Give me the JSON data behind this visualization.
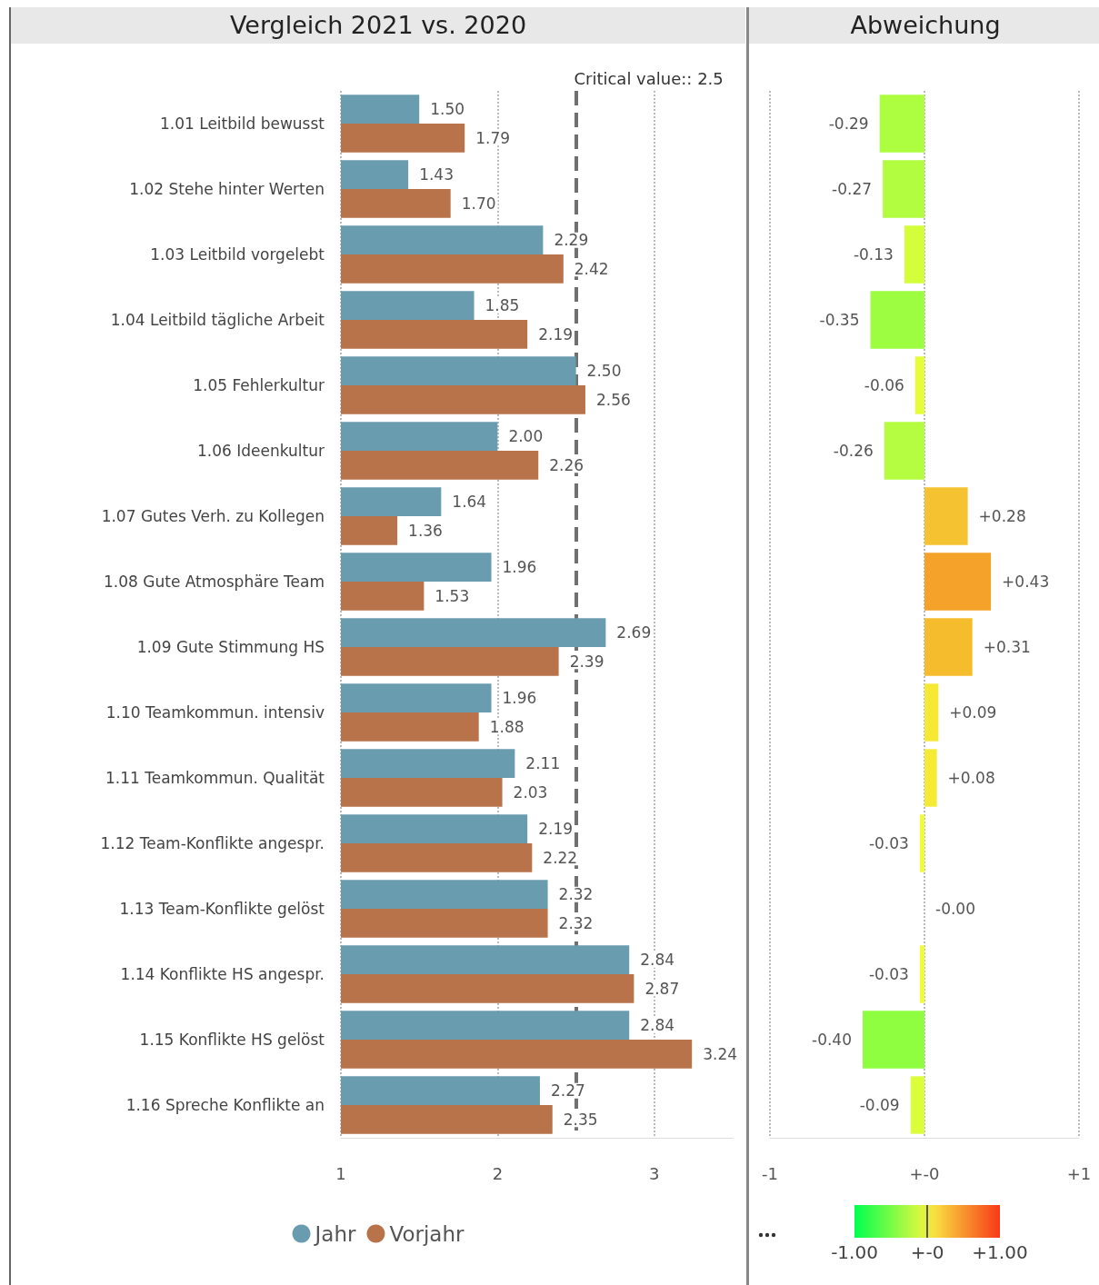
{
  "chart_data": [
    {
      "type": "bar",
      "orientation": "horizontal",
      "title": "Vergleich 2021 vs. 2020",
      "categories": [
        "1.01 Leitbild bewusst",
        "1.02 Stehe hinter Werten",
        "1.03 Leitbild vorgelebt",
        "1.04 Leitbild tägliche Arbeit",
        "1.05 Fehlerkultur",
        "1.06 Ideenkultur",
        "1.07 Gutes Verh. zu Kollegen",
        "1.08 Gute Atmosphäre Team",
        "1.09 Gute Stimmung HS",
        "1.10 Teamkommun. intensiv",
        "1.11 Teamkommun. Qualität",
        "1.12 Team-Konflikte angespr.",
        "1.13 Team-Konflikte gelöst",
        "1.14 Konflikte HS angespr.",
        "1.15 Konflikte HS gelöst",
        "1.16 Spreche Konflikte an"
      ],
      "series": [
        {
          "name": "Jahr",
          "color": "#6a9caf",
          "values": [
            1.5,
            1.43,
            2.29,
            1.85,
            2.5,
            2.0,
            1.64,
            1.96,
            2.69,
            1.96,
            2.11,
            2.19,
            2.32,
            2.84,
            2.84,
            2.27
          ],
          "value_labels": [
            "1.50",
            "1.43",
            "2.29",
            "1.85",
            "2.50",
            "2.00",
            "1.64",
            "1.96",
            "2.69",
            "1.96",
            "2.11",
            "2.19",
            "2.32",
            "2.84",
            "2.84",
            "2.27"
          ]
        },
        {
          "name": "Vorjahr",
          "color": "#b9734b",
          "values": [
            1.79,
            1.7,
            2.42,
            2.19,
            2.56,
            2.26,
            1.36,
            1.53,
            2.39,
            1.88,
            2.03,
            2.22,
            2.32,
            2.87,
            3.24,
            2.35
          ],
          "value_labels": [
            "1.79",
            "1.70",
            "2.42",
            "2.19",
            "2.56",
            "2.26",
            "1.36",
            "1.53",
            "2.39",
            "1.88",
            "2.03",
            "2.22",
            "2.32",
            "2.87",
            "3.24",
            "2.35"
          ]
        }
      ],
      "xlim": [
        1,
        3.5
      ],
      "xticks": [
        1,
        2,
        3
      ],
      "grid": "x",
      "legend": "bottom",
      "ref_lines": [
        {
          "axis": "x",
          "value": 2.5,
          "label": "Critical value:: 2.5",
          "color": "#707070",
          "line_style": "dashed"
        }
      ]
    },
    {
      "type": "bar",
      "orientation": "horizontal",
      "title": "Abweichung",
      "categories": [
        null,
        null,
        null,
        null,
        null,
        null,
        null,
        null,
        null,
        null,
        null,
        null,
        null,
        null,
        null,
        null
      ],
      "values": [
        -0.29,
        -0.27,
        -0.13,
        -0.35,
        -0.06,
        -0.26,
        0.28,
        0.43,
        0.31,
        0.09,
        0.08,
        -0.03,
        0,
        -0.03,
        -0.4,
        -0.09
      ],
      "value_labels": [
        "-0.29",
        "-0.27",
        "-0.13",
        "-0.35",
        "-0.06",
        "-0.26",
        "+0.28",
        "+0.43",
        "+0.31",
        "+0.09",
        "+0.08",
        "-0.03",
        "-0.00",
        "-0.03",
        "-0.40",
        "-0.09"
      ],
      "colors": [
        "#adfd40",
        "#b2fd40",
        "#d4fd3a",
        "#9dfd40",
        "#e6fd38",
        "#b4fd40",
        "#f5c231",
        "#f5a22a",
        "#f5bc2e",
        "#f5e936",
        "#f5ea36",
        "#eefd38",
        "#f0fa38",
        "#eefd38",
        "#8ffd40",
        "#dcfd3a"
      ],
      "xlim": [
        -1,
        1
      ],
      "xticks": [
        {
          "value": -1,
          "label": "-1"
        },
        {
          "value": 0,
          "label": "+-0"
        },
        {
          "value": 1,
          "label": "+1"
        }
      ],
      "grid": "x",
      "tick_labels": "x",
      "clim": [
        -1,
        1
      ],
      "cticks": [
        {
          "value": -1,
          "label": "-1.00"
        },
        {
          "value": 0,
          "label": "+-0"
        },
        {
          "value": 1,
          "label": "+1.00"
        }
      ]
    }
  ]
}
